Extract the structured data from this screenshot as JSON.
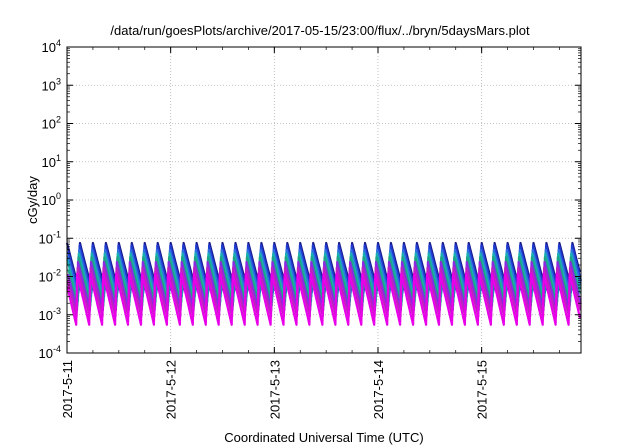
{
  "chart_data": {
    "type": "line",
    "title": "/data/run/goesPlots/archive/2017-05-15/23:00/flux/../bryn/5daysMars.plot",
    "xlabel": "Coordinated Universal Time (UTC)",
    "ylabel": "cGy/day",
    "y_scale": "log",
    "ylim": [
      0.0001,
      10000
    ],
    "y_ticks": [
      {
        "value": 0.0001,
        "base": "10",
        "exp": "-4"
      },
      {
        "value": 0.001,
        "base": "10",
        "exp": "-3"
      },
      {
        "value": 0.01,
        "base": "10",
        "exp": "-2"
      },
      {
        "value": 0.1,
        "base": "10",
        "exp": "-1"
      },
      {
        "value": 1,
        "base": "10",
        "exp": "0"
      },
      {
        "value": 10,
        "base": "10",
        "exp": "1"
      },
      {
        "value": 100,
        "base": "10",
        "exp": "2"
      },
      {
        "value": 1000,
        "base": "10",
        "exp": "3"
      },
      {
        "value": 10000,
        "base": "10",
        "exp": "4"
      }
    ],
    "xlim": [
      "2017-05-11T00:00",
      "2017-05-15T23:00"
    ],
    "x_ticks": [
      {
        "value": "2017-05-11T00:00",
        "label": "2017-5-11"
      },
      {
        "value": "2017-05-12T00:00",
        "label": "2017-5-12"
      },
      {
        "value": "2017-05-13T00:00",
        "label": "2017-5-13"
      },
      {
        "value": "2017-05-14T00:00",
        "label": "2017-5-14"
      },
      {
        "value": "2017-05-15T00:00",
        "label": "2017-5-15"
      }
    ],
    "grid": true,
    "sawtooth_teeth_per_day": 8,
    "series": [
      {
        "color": "#1a1a8c",
        "peak": 0.075,
        "trough": 0.0045
      },
      {
        "color": "#1e3ccf",
        "peak": 0.065,
        "trough": 0.0038
      },
      {
        "color": "#2f6fe0",
        "peak": 0.05,
        "trough": 0.003
      },
      {
        "color": "#17b0b0",
        "peak": 0.04,
        "trough": 0.0022
      },
      {
        "color": "#1fa387",
        "peak": 0.032,
        "trough": 0.0017
      },
      {
        "color": "#8a2be2",
        "peak": 0.024,
        "trough": 0.0013
      },
      {
        "color": "#c020c0",
        "peak": 0.017,
        "trough": 0.0009
      },
      {
        "color": "#e800e8",
        "peak": 0.012,
        "trough": 0.00055
      }
    ]
  }
}
